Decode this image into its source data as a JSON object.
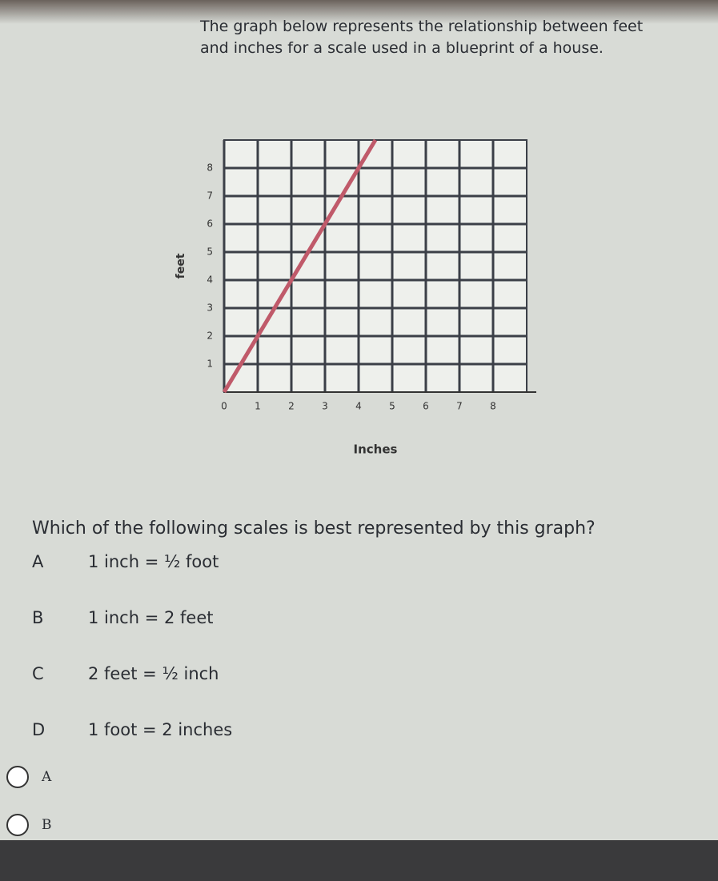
{
  "header": {
    "text": "The graph below represents the relationship between feet and inches for a scale used in a blueprint of a house."
  },
  "chart_data": {
    "type": "line",
    "x_label": "Inches",
    "y_label": "feet",
    "x": [
      0,
      4.5
    ],
    "values": [
      0,
      9
    ],
    "color": "#c05a6a",
    "xlim": [
      0,
      9
    ],
    "ylim": [
      0,
      9
    ],
    "xticks": [
      0,
      1,
      2,
      3,
      4,
      5,
      6,
      7,
      8
    ],
    "yticks": [
      1,
      2,
      3,
      4,
      5,
      6,
      7,
      8
    ],
    "grid": true
  },
  "question": "Which of the following scales is best represented by this graph?",
  "options": [
    {
      "letter": "A",
      "text": "1 inch = ½ foot"
    },
    {
      "letter": "B",
      "text": "1 inch = 2 feet"
    },
    {
      "letter": "C",
      "text": "2 feet = ½ inch"
    },
    {
      "letter": "D",
      "text": "1 foot = 2 inches"
    }
  ],
  "choices": [
    "A",
    "B"
  ]
}
